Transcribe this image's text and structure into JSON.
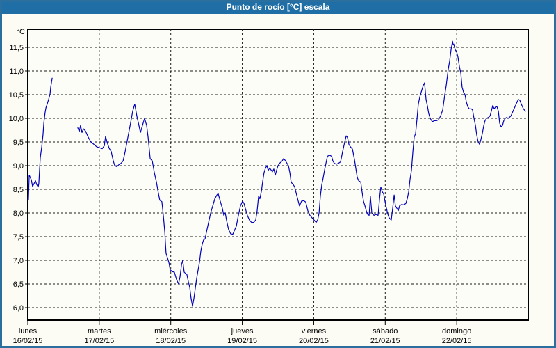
{
  "header": {
    "title": "Punto de rocío [°C] escala"
  },
  "colors": {
    "titlebar_bg": "#1f6fa6",
    "titlebar_text": "#ffffff",
    "frame_border": "#2b6f9f",
    "page_bg": "#fcfcf4",
    "plot_bg": "#fdfdf8",
    "grid": "#1a1a1a",
    "axis": "#000000",
    "line": "#0000bb"
  },
  "chart_data": {
    "type": "line",
    "title": "Punto de rocío [°C] escala",
    "grid": "dashed",
    "legend": "none",
    "y_axis": {
      "unit": "°C",
      "min": 6.0,
      "max": 11.5,
      "step": 0.5,
      "tick_labels": [
        "6,0",
        "6,5",
        "7,0",
        "7,5",
        "8,0",
        "8,5",
        "9,0",
        "9,5",
        "10,0",
        "10,5",
        "11,0",
        "11,5"
      ]
    },
    "x_axis": {
      "span_hours": 168,
      "days": [
        {
          "name": "lunes",
          "date": "16/02/15"
        },
        {
          "name": "martes",
          "date": "17/02/15"
        },
        {
          "name": "miércoles",
          "date": "18/02/15"
        },
        {
          "name": "jueves",
          "date": "19/02/15"
        },
        {
          "name": "viernes",
          "date": "20/02/15"
        },
        {
          "name": "sábado",
          "date": "21/02/15"
        },
        {
          "name": "domingo",
          "date": "22/02/15"
        }
      ]
    },
    "series": [
      {
        "name": "punto-de-rocio",
        "color": "#0000bb",
        "points": [
          [
            0,
            8.3
          ],
          [
            0.2,
            8.27
          ],
          [
            0.5,
            8.8
          ],
          [
            1.2,
            8.7
          ],
          [
            1.6,
            8.56
          ],
          [
            2.1,
            8.62
          ],
          [
            2.6,
            8.68
          ],
          [
            3.0,
            8.6
          ],
          [
            3.5,
            8.55
          ],
          [
            3.7,
            8.62
          ],
          [
            4.0,
            8.95
          ],
          [
            4.2,
            9.17
          ],
          [
            4.7,
            9.4
          ],
          [
            5.1,
            9.65
          ],
          [
            5.4,
            9.9
          ],
          [
            5.8,
            10.12
          ],
          [
            6.1,
            10.22
          ],
          [
            6.5,
            10.3
          ],
          [
            7.0,
            10.4
          ],
          [
            7.5,
            10.52
          ],
          [
            7.7,
            10.66
          ],
          [
            8.2,
            10.85
          ],
          null,
          [
            16.8,
            9.8
          ],
          [
            17.3,
            9.72
          ],
          [
            17.7,
            9.85
          ],
          [
            18.2,
            9.7
          ],
          [
            18.7,
            9.78
          ],
          [
            19.4,
            9.73
          ],
          [
            20.3,
            9.6
          ],
          [
            21.2,
            9.5
          ],
          [
            22.2,
            9.45
          ],
          [
            23.1,
            9.4
          ],
          [
            24.0,
            9.38
          ],
          [
            25.0,
            9.36
          ],
          [
            25.7,
            9.42
          ],
          [
            26.1,
            9.62
          ],
          [
            26.6,
            9.5
          ],
          [
            27.3,
            9.37
          ],
          [
            28.0,
            9.3
          ],
          [
            28.7,
            9.1
          ],
          [
            29.2,
            9.0
          ],
          [
            29.9,
            8.98
          ],
          [
            30.6,
            9.02
          ],
          [
            31.3,
            9.05
          ],
          [
            32.0,
            9.1
          ],
          [
            32.7,
            9.3
          ],
          [
            33.6,
            9.6
          ],
          [
            34.5,
            9.9
          ],
          [
            35.2,
            10.15
          ],
          [
            35.9,
            10.3
          ],
          [
            36.6,
            10.05
          ],
          [
            37.3,
            9.85
          ],
          [
            37.8,
            9.7
          ],
          [
            38.5,
            9.85
          ],
          [
            39.2,
            10.0
          ],
          [
            39.9,
            9.85
          ],
          [
            40.4,
            9.6
          ],
          [
            41.1,
            9.15
          ],
          [
            41.8,
            9.1
          ],
          [
            42.5,
            8.85
          ],
          [
            43.2,
            8.65
          ],
          [
            43.9,
            8.4
          ],
          [
            44.3,
            8.27
          ],
          [
            45.0,
            8.24
          ],
          [
            45.5,
            7.95
          ],
          [
            46.0,
            7.6
          ],
          [
            46.4,
            7.15
          ],
          [
            46.9,
            7.05
          ],
          [
            47.4,
            6.95
          ],
          [
            47.8,
            6.8
          ],
          [
            48.5,
            6.76
          ],
          [
            49.2,
            6.75
          ],
          [
            49.9,
            6.6
          ],
          [
            50.6,
            6.5
          ],
          [
            51.1,
            6.65
          ],
          [
            51.6,
            6.9
          ],
          [
            52.0,
            7.0
          ],
          [
            52.5,
            6.75
          ],
          [
            53.0,
            6.72
          ],
          [
            53.4,
            6.7
          ],
          [
            53.9,
            6.55
          ],
          [
            54.4,
            6.42
          ],
          [
            54.8,
            6.2
          ],
          [
            55.3,
            6.03
          ],
          [
            55.8,
            6.2
          ],
          [
            56.2,
            6.4
          ],
          [
            56.7,
            6.62
          ],
          [
            57.2,
            6.8
          ],
          [
            57.6,
            6.95
          ],
          [
            58.1,
            7.2
          ],
          [
            58.6,
            7.35
          ],
          [
            59.0,
            7.43
          ],
          [
            59.5,
            7.45
          ],
          [
            60.0,
            7.6
          ],
          [
            60.7,
            7.8
          ],
          [
            61.4,
            8.0
          ],
          [
            62.1,
            8.15
          ],
          [
            62.8,
            8.3
          ],
          [
            63.5,
            8.38
          ],
          [
            63.9,
            8.41
          ],
          [
            64.6,
            8.25
          ],
          [
            65.3,
            8.1
          ],
          [
            65.8,
            7.95
          ],
          [
            66.3,
            8.0
          ],
          [
            66.7,
            7.85
          ],
          [
            67.4,
            7.65
          ],
          [
            68.1,
            7.56
          ],
          [
            68.8,
            7.55
          ],
          [
            69.5,
            7.65
          ],
          [
            70.0,
            7.72
          ],
          [
            70.7,
            7.95
          ],
          [
            71.4,
            8.15
          ],
          [
            72.1,
            8.25
          ],
          [
            72.6,
            8.2
          ],
          [
            73.0,
            8.1
          ],
          [
            73.7,
            7.95
          ],
          [
            74.4,
            7.85
          ],
          [
            75.1,
            7.8
          ],
          [
            75.8,
            7.8
          ],
          [
            76.5,
            7.85
          ],
          [
            77.0,
            8.05
          ],
          [
            77.5,
            8.36
          ],
          [
            77.9,
            8.3
          ],
          [
            78.4,
            8.45
          ],
          [
            78.9,
            8.68
          ],
          [
            79.3,
            8.85
          ],
          [
            79.8,
            8.95
          ],
          [
            80.3,
            9.0
          ],
          [
            80.7,
            8.9
          ],
          [
            81.2,
            8.95
          ],
          [
            82.1,
            8.87
          ],
          [
            82.6,
            8.93
          ],
          [
            83.1,
            8.8
          ],
          [
            83.5,
            8.9
          ],
          [
            84.0,
            9.0
          ],
          [
            84.7,
            9.06
          ],
          [
            85.4,
            9.1
          ],
          [
            85.9,
            9.15
          ],
          [
            86.3,
            9.12
          ],
          [
            87.0,
            9.05
          ],
          [
            87.5,
            9.0
          ],
          [
            88.0,
            8.85
          ],
          [
            88.4,
            8.65
          ],
          [
            89.1,
            8.6
          ],
          [
            89.6,
            8.55
          ],
          [
            90.1,
            8.42
          ],
          [
            90.8,
            8.25
          ],
          [
            91.2,
            8.15
          ],
          [
            91.9,
            8.25
          ],
          [
            92.6,
            8.26
          ],
          [
            93.3,
            8.23
          ],
          [
            94.0,
            8.05
          ],
          [
            94.7,
            7.95
          ],
          [
            95.4,
            7.9
          ],
          [
            96.1,
            7.85
          ],
          [
            96.8,
            7.8
          ],
          [
            97.3,
            7.85
          ],
          [
            97.8,
            8.0
          ],
          [
            98.2,
            8.35
          ],
          [
            98.7,
            8.6
          ],
          [
            99.2,
            8.75
          ],
          [
            99.6,
            8.9
          ],
          [
            100.1,
            9.05
          ],
          [
            100.6,
            9.2
          ],
          [
            101.3,
            9.22
          ],
          [
            102.0,
            9.2
          ],
          [
            102.4,
            9.1
          ],
          [
            102.9,
            9.05
          ],
          [
            103.6,
            9.03
          ],
          [
            104.3,
            9.05
          ],
          [
            105.0,
            9.08
          ],
          [
            105.7,
            9.3
          ],
          [
            106.4,
            9.5
          ],
          [
            106.9,
            9.63
          ],
          [
            107.3,
            9.6
          ],
          [
            107.8,
            9.45
          ],
          [
            108.3,
            9.4
          ],
          [
            109.0,
            9.35
          ],
          [
            109.7,
            9.12
          ],
          [
            110.1,
            8.95
          ],
          [
            110.6,
            8.75
          ],
          [
            111.1,
            8.68
          ],
          [
            111.8,
            8.65
          ],
          [
            112.2,
            8.45
          ],
          [
            112.7,
            8.25
          ],
          [
            113.2,
            8.15
          ],
          [
            113.6,
            8.05
          ],
          [
            114.1,
            7.97
          ],
          [
            114.6,
            7.95
          ],
          [
            115.0,
            8.35
          ],
          [
            115.5,
            8.0
          ],
          [
            116.2,
            7.95
          ],
          [
            116.9,
            7.97
          ],
          [
            117.6,
            7.95
          ],
          [
            118.1,
            8.3
          ],
          [
            118.5,
            8.55
          ],
          [
            119.0,
            8.45
          ],
          [
            119.5,
            8.4
          ],
          [
            119.9,
            8.25
          ],
          [
            120.4,
            8.1
          ],
          [
            120.9,
            7.97
          ],
          [
            121.3,
            7.9
          ],
          [
            122.0,
            7.85
          ],
          [
            122.5,
            8.1
          ],
          [
            123.0,
            8.38
          ],
          [
            123.4,
            8.15
          ],
          [
            123.9,
            8.1
          ],
          [
            124.4,
            8.05
          ],
          [
            124.8,
            8.15
          ],
          [
            125.5,
            8.18
          ],
          [
            126.2,
            8.17
          ],
          [
            126.9,
            8.2
          ],
          [
            127.4,
            8.3
          ],
          [
            127.9,
            8.45
          ],
          [
            128.3,
            8.7
          ],
          [
            128.8,
            8.9
          ],
          [
            129.3,
            9.3
          ],
          [
            129.7,
            9.6
          ],
          [
            130.2,
            9.68
          ],
          [
            130.7,
            10.0
          ],
          [
            131.1,
            10.3
          ],
          [
            131.6,
            10.45
          ],
          [
            132.3,
            10.6
          ],
          [
            132.8,
            10.7
          ],
          [
            133.2,
            10.75
          ],
          [
            133.7,
            10.4
          ],
          [
            134.2,
            10.25
          ],
          [
            134.6,
            10.1
          ],
          [
            135.1,
            10.0
          ],
          [
            135.8,
            9.93
          ],
          [
            136.5,
            9.95
          ],
          [
            137.2,
            9.95
          ],
          [
            137.9,
            9.97
          ],
          [
            138.6,
            10.05
          ],
          [
            139.3,
            10.18
          ],
          [
            140.0,
            10.5
          ],
          [
            140.5,
            10.7
          ],
          [
            141.2,
            11.05
          ],
          [
            141.6,
            11.2
          ],
          [
            142.1,
            11.45
          ],
          [
            142.6,
            11.63
          ],
          [
            142.8,
            11.55
          ],
          [
            143.0,
            11.57
          ],
          [
            143.5,
            11.45
          ],
          [
            144.0,
            11.4
          ],
          [
            144.4,
            11.3
          ],
          [
            144.9,
            11.1
          ],
          [
            145.4,
            10.95
          ],
          [
            145.8,
            10.66
          ],
          [
            146.3,
            10.55
          ],
          [
            146.8,
            10.5
          ],
          [
            147.2,
            10.35
          ],
          [
            147.7,
            10.25
          ],
          [
            148.2,
            10.2
          ],
          [
            148.9,
            10.2
          ],
          [
            149.3,
            10.18
          ],
          [
            149.8,
            10.0
          ],
          [
            150.3,
            9.85
          ],
          [
            150.7,
            9.65
          ],
          [
            151.2,
            9.5
          ],
          [
            151.7,
            9.45
          ],
          [
            152.1,
            9.55
          ],
          [
            152.6,
            9.68
          ],
          [
            153.1,
            9.85
          ],
          [
            153.5,
            9.95
          ],
          [
            154.0,
            10.0
          ],
          [
            154.7,
            10.02
          ],
          [
            155.2,
            10.05
          ],
          [
            155.6,
            10.15
          ],
          [
            156.1,
            10.27
          ],
          [
            156.6,
            10.2
          ],
          [
            157.0,
            10.24
          ],
          [
            157.5,
            10.25
          ],
          [
            158.0,
            10.15
          ],
          [
            158.4,
            9.9
          ],
          [
            158.9,
            9.82
          ],
          [
            159.4,
            9.85
          ],
          [
            159.8,
            9.95
          ],
          [
            160.3,
            10.0
          ],
          [
            160.8,
            10.02
          ],
          [
            161.2,
            10.0
          ],
          [
            161.7,
            10.02
          ],
          [
            162.2,
            10.05
          ],
          [
            162.9,
            10.15
          ],
          [
            163.6,
            10.25
          ],
          [
            164.3,
            10.35
          ],
          [
            164.7,
            10.4
          ],
          [
            165.2,
            10.38
          ],
          [
            165.7,
            10.3
          ],
          [
            166.4,
            10.2
          ],
          [
            167.1,
            10.15
          ]
        ]
      }
    ]
  }
}
